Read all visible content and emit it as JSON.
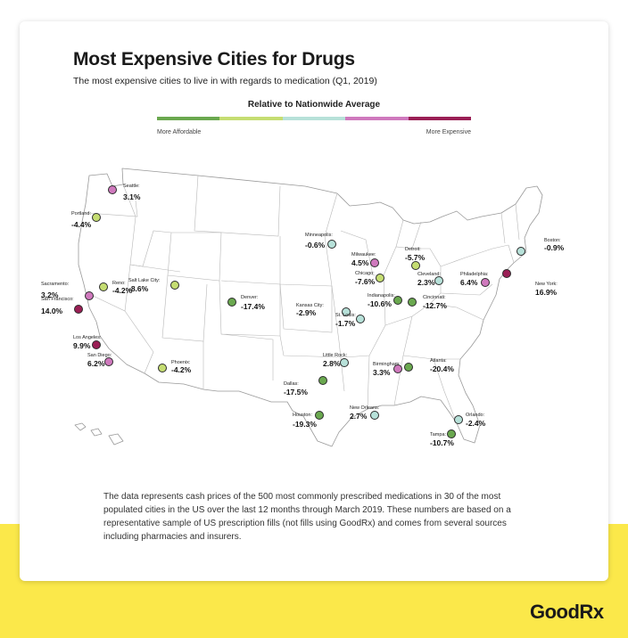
{
  "header": {
    "title": "Most Expensive Cities for Drugs",
    "subtitle": "The most expensive cities to live in with regards to medication (Q1, 2019)"
  },
  "legend": {
    "title": "Relative to Nationwide Average",
    "low_label": "More Affordable",
    "high_label": "More Expensive",
    "colors": [
      "#6aa84f",
      "#c5dd72",
      "#b7e1d9",
      "#cf79bd",
      "#9a1f55"
    ]
  },
  "map": {
    "base_fill": "#ffffff",
    "border_color": "#999999",
    "cities": [
      {
        "name": "Seattle:",
        "value": "3.1%",
        "color": "#cf79bd"
      },
      {
        "name": "Portland:",
        "value": "-4.4%",
        "color": "#c5dd72"
      },
      {
        "name": "Sacramento:",
        "value": "3.2%",
        "color": "#cf79bd"
      },
      {
        "name": "San Francisco:",
        "value": "14.0%",
        "color": "#9a1f55"
      },
      {
        "name": "Reno:",
        "value": "-4.2%",
        "color": "#c5dd72"
      },
      {
        "name": "Salt Lake City:",
        "value": "-8.6%",
        "color": "#c5dd72"
      },
      {
        "name": "Los Angeles:",
        "value": "9.9%",
        "color": "#9a1f55"
      },
      {
        "name": "San Diego:",
        "value": "6.2%",
        "color": "#cf79bd"
      },
      {
        "name": "Phoenix:",
        "value": "-4.2%",
        "color": "#c5dd72"
      },
      {
        "name": "Denver:",
        "value": "-17.4%",
        "color": "#6aa84f"
      },
      {
        "name": "Minneapolis:",
        "value": "-0.6%",
        "color": "#b7e1d9"
      },
      {
        "name": "Kansas City:",
        "value": "-2.9%",
        "color": "#b7e1d9"
      },
      {
        "name": "St. Louis:",
        "value": "-1.7%",
        "color": "#b7e1d9"
      },
      {
        "name": "Dallas:",
        "value": "-17.5%",
        "color": "#6aa84f"
      },
      {
        "name": "Houston:",
        "value": "-19.3%",
        "color": "#6aa84f"
      },
      {
        "name": "Little Rock:",
        "value": "2.8%",
        "color": "#b7e1d9"
      },
      {
        "name": "Milwaukee:",
        "value": "4.5%",
        "color": "#cf79bd"
      },
      {
        "name": "Chicago:",
        "value": "-7.6%",
        "color": "#c5dd72"
      },
      {
        "name": "Indianapolis:",
        "value": "-10.6%",
        "color": "#6aa84f"
      },
      {
        "name": "Detroit:",
        "value": "-5.7%",
        "color": "#c5dd72"
      },
      {
        "name": "Cleveland:",
        "value": "2.3%",
        "color": "#b7e1d9"
      },
      {
        "name": "Cincinnati:",
        "value": "-12.7%",
        "color": "#6aa84f"
      },
      {
        "name": "Philadelphia:",
        "value": "6.4%",
        "color": "#cf79bd"
      },
      {
        "name": "New York:",
        "value": "16.9%",
        "color": "#9a1f55"
      },
      {
        "name": "Boston:",
        "value": "-0.9%",
        "color": "#b7e1d9"
      },
      {
        "name": "Birmingham:",
        "value": "3.3%",
        "color": "#cf79bd"
      },
      {
        "name": "Atlanta:",
        "value": "-20.4%",
        "color": "#6aa84f"
      },
      {
        "name": "New Orleans:",
        "value": "2.7%",
        "color": "#b7e1d9"
      },
      {
        "name": "Orlando:",
        "value": "-2.4%",
        "color": "#b7e1d9"
      },
      {
        "name": "Tampa:",
        "value": "-10.7%",
        "color": "#6aa84f"
      }
    ]
  },
  "footnote": "The data represents cash prices of the 500 most commonly prescribed medications in 30 of the most populated cities in the US over the last 12 months through March 2019. These numbers are based on a representative sample of US prescription fills (not fills using GoodRx) and comes from several sources including pharmacies and insurers.",
  "brand": {
    "name": "GoodRx"
  }
}
